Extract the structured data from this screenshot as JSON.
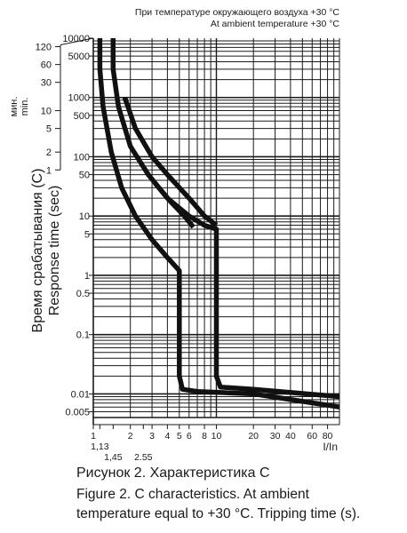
{
  "header": {
    "line_ru": "При температуре окружающего воздуха +30 °С",
    "line_en": "At ambient temperature +30 °C"
  },
  "caption": {
    "line1": "Рисунок 2. Характеристика С",
    "line2": "Figure 2. C characteristics. At ambient",
    "line3": "temperature equal to +30 °C. Tripping time (s)."
  },
  "chart_data": {
    "type": "line",
    "xlabel": "I/In",
    "ylabel_ru": "Время срабатывания (С)",
    "ylabel_en": "Response time (sec)",
    "minutes_label_ru": "мин.",
    "minutes_label_en": "min.",
    "x_scale": "log",
    "y_scale": "log",
    "xlim": [
      1,
      100
    ],
    "ylim": [
      0.004,
      10000
    ],
    "grid": true,
    "x_ticks": [
      {
        "value": 1,
        "label": "1"
      },
      {
        "value": 1.13,
        "label": "1,13"
      },
      {
        "value": 1.45,
        "label": "1,45"
      },
      {
        "value": 2,
        "label": "2"
      },
      {
        "value": 2.55,
        "label": "2.55"
      },
      {
        "value": 3,
        "label": "3"
      },
      {
        "value": 4,
        "label": "4"
      },
      {
        "value": 5,
        "label": "5"
      },
      {
        "value": 6,
        "label": "6"
      },
      {
        "value": 8,
        "label": "8"
      },
      {
        "value": 10,
        "label": "10"
      },
      {
        "value": 20,
        "label": "20"
      },
      {
        "value": 30,
        "label": "30"
      },
      {
        "value": 40,
        "label": "40"
      },
      {
        "value": 60,
        "label": "60"
      },
      {
        "value": 80,
        "label": "80"
      }
    ],
    "y_ticks": [
      {
        "value": 10000,
        "label": "10000"
      },
      {
        "value": 5000,
        "label": "5000"
      },
      {
        "value": 1000,
        "label": "1000"
      },
      {
        "value": 500,
        "label": "500"
      },
      {
        "value": 100,
        "label": "100"
      },
      {
        "value": 50,
        "label": "50"
      },
      {
        "value": 10,
        "label": "10"
      },
      {
        "value": 5,
        "label": "5"
      },
      {
        "value": 1,
        "label": "1"
      },
      {
        "value": 0.5,
        "label": "0.5"
      },
      {
        "value": 0.1,
        "label": "0.1"
      },
      {
        "value": 0.01,
        "label": "0.01"
      },
      {
        "value": 0.005,
        "label": "0.005"
      }
    ],
    "minute_ticks": [
      {
        "value": 7200,
        "label": "120"
      },
      {
        "value": 3600,
        "label": "60"
      },
      {
        "value": 1800,
        "label": "30"
      },
      {
        "value": 600,
        "label": "10"
      },
      {
        "value": 300,
        "label": "5"
      },
      {
        "value": 120,
        "label": "2"
      },
      {
        "value": 60,
        "label": "1"
      }
    ],
    "series": [
      {
        "values": [
          [
            1.13,
            10000
          ],
          [
            1.13,
            3000
          ],
          [
            1.2,
            700
          ],
          [
            1.4,
            120
          ],
          [
            1.7,
            30
          ],
          [
            2.2,
            10
          ],
          [
            3,
            4
          ],
          [
            4,
            2
          ],
          [
            5,
            1.2
          ],
          [
            5,
            0.02
          ],
          [
            5.3,
            0.012
          ],
          [
            7,
            0.011
          ],
          [
            20,
            0.01
          ],
          [
            100,
            0.006
          ]
        ]
      },
      {
        "values": [
          [
            1.45,
            10000
          ],
          [
            1.45,
            3000
          ],
          [
            1.6,
            700
          ],
          [
            2,
            150
          ],
          [
            2.8,
            50
          ],
          [
            4,
            20
          ],
          [
            6,
            10
          ],
          [
            8,
            7
          ],
          [
            10,
            6
          ],
          [
            10,
            0.02
          ],
          [
            10.8,
            0.013
          ],
          [
            20,
            0.012
          ],
          [
            100,
            0.009
          ]
        ]
      },
      {
        "values": [
          [
            1.8,
            1000
          ],
          [
            2.2,
            300
          ],
          [
            3,
            100
          ],
          [
            4,
            50
          ],
          [
            6,
            20
          ],
          [
            8,
            10
          ],
          [
            10,
            7
          ]
        ]
      },
      {
        "values": [
          [
            3.2,
            35
          ],
          [
            4.2,
            18
          ],
          [
            5.5,
            10
          ],
          [
            6.5,
            6.5
          ]
        ]
      }
    ]
  }
}
